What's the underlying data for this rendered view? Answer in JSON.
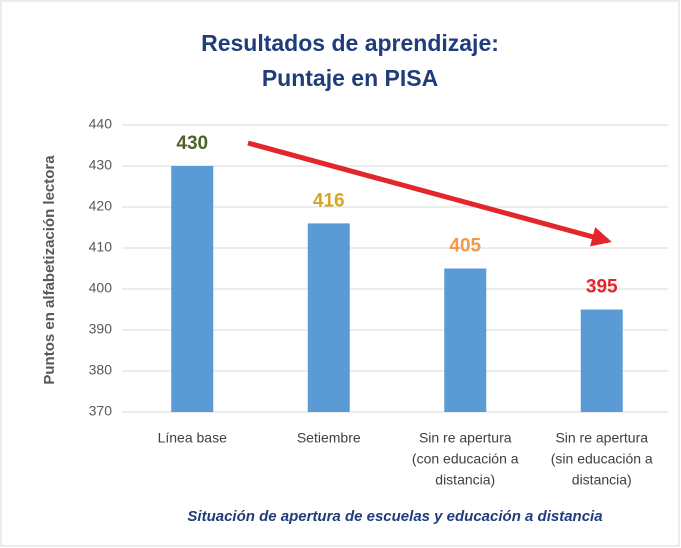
{
  "chart_data": {
    "type": "bar",
    "title": [
      "Resultados de aprendizaje:",
      "Puntaje en PISA"
    ],
    "y_label": "Puntos en alfabetización lectora",
    "x_label": "Situación de apertura de escuelas y educación a distancia",
    "categories": [
      [
        "Línea base"
      ],
      [
        "Setiembre"
      ],
      [
        "Sin re apertura",
        "(con educación a",
        "distancia)"
      ],
      [
        "Sin re apertura",
        "(sin educación a",
        "distancia)"
      ]
    ],
    "values": [
      430,
      416,
      405,
      395
    ],
    "color": "#5b9bd5",
    "value_label_colors": [
      "#4f6228",
      "#d9a520",
      "#f79646",
      "#e3262b"
    ],
    "ylim": [
      370,
      440
    ],
    "yticks": [
      370,
      380,
      390,
      400,
      410,
      420,
      430,
      440
    ],
    "grid": true
  }
}
